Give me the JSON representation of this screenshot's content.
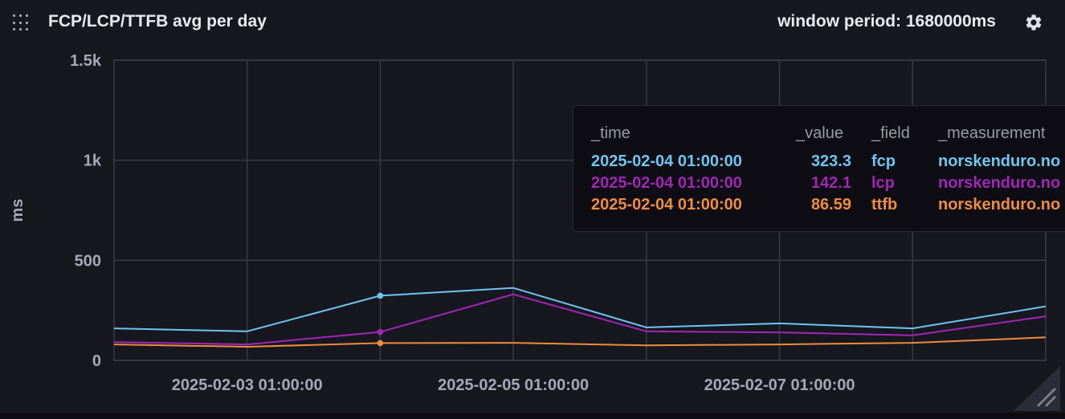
{
  "header": {
    "title": "FCP/LCP/TTFB avg per day",
    "window_period": "window period: 1680000ms"
  },
  "icons": {
    "drag": "drag-handle-icon",
    "settings": "gear-icon",
    "resize": "resize-handle-icon"
  },
  "colors": {
    "fcp": "#6ec6f0",
    "lcp": "#a226b6",
    "ttfb": "#f08c3e",
    "grid": "#3a3a46",
    "background": "#17171f"
  },
  "tooltip": {
    "headers": [
      "_time",
      "_value",
      "_field",
      "_measurement"
    ],
    "rows": [
      {
        "time": "2025-02-04 01:00:00",
        "value": "323.3",
        "field": "fcp",
        "measurement": "norskenduro.no",
        "color": "#6ec6f0"
      },
      {
        "time": "2025-02-04 01:00:00",
        "value": "142.1",
        "field": "lcp",
        "measurement": "norskenduro.no",
        "color": "#a226b6"
      },
      {
        "time": "2025-02-04 01:00:00",
        "value": "86.59",
        "field": "ttfb",
        "measurement": "norskenduro.no",
        "color": "#f08c3e"
      }
    ]
  },
  "chart_data": {
    "type": "line",
    "title": "FCP/LCP/TTFB avg per day",
    "ylabel": "ms",
    "xlabel": "",
    "ylim": [
      0,
      1500
    ],
    "y_ticks": [
      0,
      500,
      1000,
      1500
    ],
    "y_tick_labels": [
      "0",
      "500",
      "1k",
      "1.5k"
    ],
    "x_range": [
      "2025-02-02 01:00:00",
      "2025-02-09 01:00:00"
    ],
    "x_tick_labels": [
      "2025-02-03 01:00:00",
      "2025-02-05 01:00:00",
      "2025-02-07 01:00:00"
    ],
    "x": [
      "2025-02-02 01:00:00",
      "2025-02-03 01:00:00",
      "2025-02-04 01:00:00",
      "2025-02-05 01:00:00",
      "2025-02-06 01:00:00",
      "2025-02-07 01:00:00",
      "2025-02-08 01:00:00",
      "2025-02-09 01:00:00"
    ],
    "hover_x": "2025-02-04 01:00:00",
    "grid": true,
    "series": [
      {
        "name": "fcp",
        "values": [
          160,
          145,
          323.3,
          362,
          165,
          185,
          160,
          270
        ]
      },
      {
        "name": "lcp",
        "values": [
          92,
          80,
          142.1,
          330,
          145,
          140,
          125,
          220
        ]
      },
      {
        "name": "ttfb",
        "values": [
          80,
          68,
          86.59,
          88,
          75,
          80,
          88,
          115
        ]
      }
    ]
  }
}
